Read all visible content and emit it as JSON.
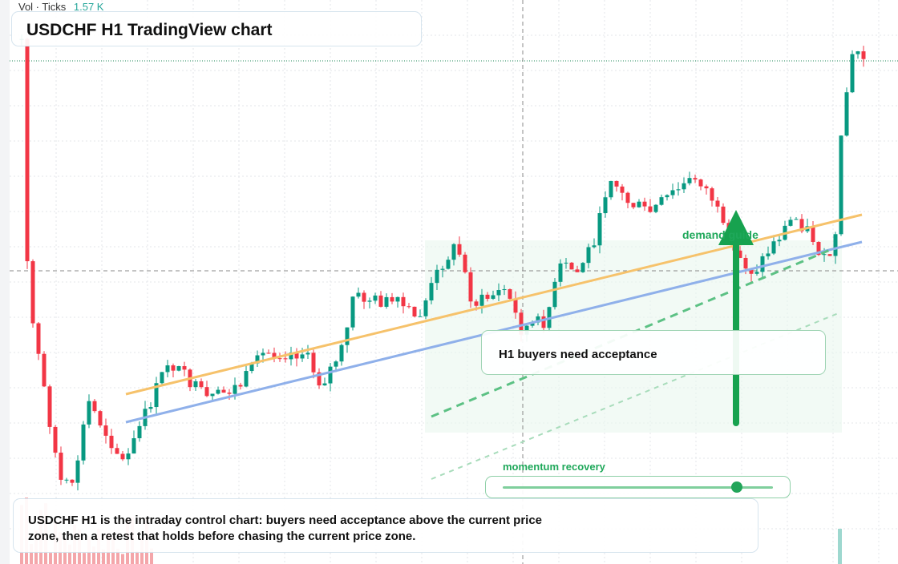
{
  "header": {
    "vol_label": "Vol · Ticks",
    "vol_value": "1.57 K",
    "title": "USDCHF H1 TradingView chart"
  },
  "annotations": {
    "demand": "demand guide",
    "callout": "H1 buyers need acceptance",
    "momentum": "momentum recovery"
  },
  "caption": "USDCHF H1 is the intraday control chart: buyers need acceptance above the current price zone, then a retest that holds before chasing the current price zone."
}
